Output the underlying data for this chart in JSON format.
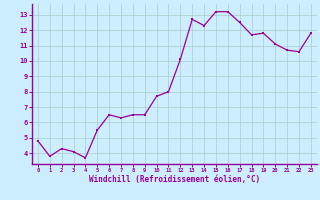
{
  "x": [
    0,
    1,
    2,
    3,
    4,
    5,
    6,
    7,
    8,
    9,
    10,
    11,
    12,
    13,
    14,
    15,
    16,
    17,
    18,
    19,
    20,
    21,
    22,
    23
  ],
  "y": [
    4.8,
    3.8,
    4.3,
    4.1,
    3.7,
    5.5,
    6.5,
    6.3,
    6.5,
    6.5,
    7.7,
    8.0,
    10.1,
    12.7,
    12.3,
    13.2,
    13.2,
    12.5,
    11.7,
    11.8,
    11.1,
    10.7,
    10.6,
    11.8
  ],
  "line_color": "#990099",
  "marker": "s",
  "marker_size": 1.8,
  "bg_color": "#cceeff",
  "grid_color": "#aacccc",
  "xlabel": "Windchill (Refroidissement éolien,°C)",
  "xlabel_color": "#990099",
  "ylabel_ticks": [
    4,
    5,
    6,
    7,
    8,
    9,
    10,
    11,
    12,
    13
  ],
  "ylim": [
    3.3,
    13.7
  ],
  "xlim": [
    -0.5,
    23.5
  ],
  "tick_color": "#990099",
  "spine_color": "#990099"
}
